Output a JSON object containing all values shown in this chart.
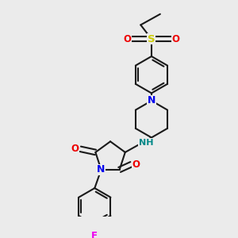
{
  "bg_color": "#ebebeb",
  "bond_color": "#1a1a1a",
  "N_color": "#0000ee",
  "O_color": "#ee0000",
  "S_color": "#cccc00",
  "F_color": "#ee00ee",
  "NH_color": "#008888",
  "line_width": 1.5,
  "font_size": 8.5,
  "fig_w": 3.0,
  "fig_h": 3.0,
  "dpi": 100,
  "xlim": [
    0,
    10
  ],
  "ylim": [
    0,
    10
  ]
}
